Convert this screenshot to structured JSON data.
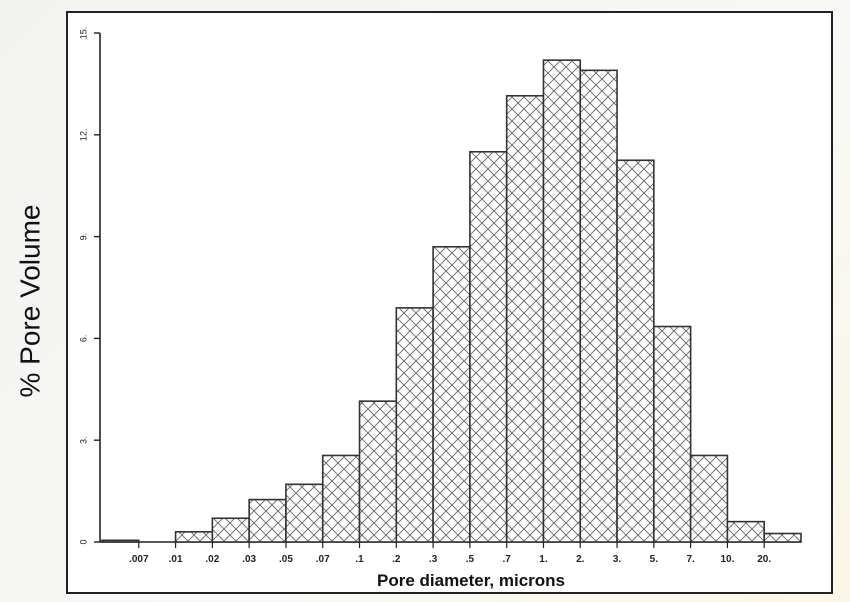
{
  "page": {
    "ylabel": "% Pore Volume"
  },
  "chart_data": {
    "type": "bar",
    "title": "",
    "xlabel": "Pore diameter, microns",
    "ylabel": "% Pore Volume",
    "ylim": [
      0,
      15
    ],
    "yticks": [
      "0",
      "3.",
      "6.",
      "9.",
      "12.",
      "15."
    ],
    "ytick_values": [
      0,
      3,
      6,
      9,
      12,
      15
    ],
    "grid": false,
    "fill_pattern": "crosshatch",
    "bar_color": "#333333",
    "xtick_labels": [
      ".007",
      ".01",
      ".02",
      ".03",
      ".05",
      ".07",
      ".1",
      ".2",
      ".3",
      ".5",
      ".7",
      "1.",
      "2.",
      "3.",
      "5.",
      "7.",
      "10.",
      "20."
    ],
    "bins": [
      {
        "from": "",
        "to": ".007",
        "value": 0.05
      },
      {
        "from": ".007",
        "to": ".01",
        "value": 0
      },
      {
        "from": ".01",
        "to": ".02",
        "value": 0.3
      },
      {
        "from": ".02",
        "to": ".03",
        "value": 0.7
      },
      {
        "from": ".03",
        "to": ".05",
        "value": 1.25
      },
      {
        "from": ".05",
        "to": ".07",
        "value": 1.7
      },
      {
        "from": ".07",
        "to": ".1",
        "value": 2.55
      },
      {
        "from": ".1",
        "to": ".2",
        "value": 4.15
      },
      {
        "from": ".2",
        "to": ".3",
        "value": 6.9
      },
      {
        "from": ".3",
        "to": ".5",
        "value": 8.7
      },
      {
        "from": ".5",
        "to": ".7",
        "value": 11.5
      },
      {
        "from": ".7",
        "to": "1.",
        "value": 13.15
      },
      {
        "from": "1.",
        "to": "2.",
        "value": 14.2
      },
      {
        "from": "2.",
        "to": "3.",
        "value": 13.9
      },
      {
        "from": "3.",
        "to": "5.",
        "value": 11.25
      },
      {
        "from": "5.",
        "to": "7.",
        "value": 6.35
      },
      {
        "from": "7.",
        "to": "10.",
        "value": 2.55
      },
      {
        "from": "10.",
        "to": "20.",
        "value": 0.6
      },
      {
        "from": "20.",
        "to": "",
        "value": 0.25
      }
    ]
  }
}
